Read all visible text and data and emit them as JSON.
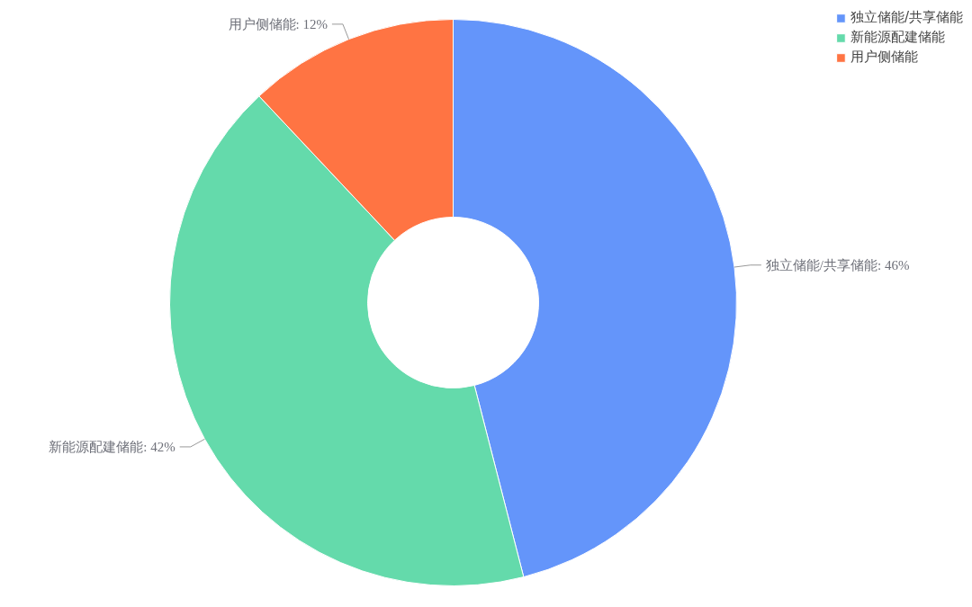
{
  "chart_data": {
    "type": "donut",
    "categories": [
      "独立储能/共享储能",
      "新能源配建储能",
      "用户侧储能"
    ],
    "values": [
      46,
      42,
      12
    ],
    "value_labels": [
      "独立储能/共享储能: 46%",
      "新能源配建储能: 42%",
      "用户侧储能: 12%"
    ],
    "colors": [
      "#6495fa",
      "#64daab",
      "#ff7443"
    ],
    "legend": "top right"
  }
}
